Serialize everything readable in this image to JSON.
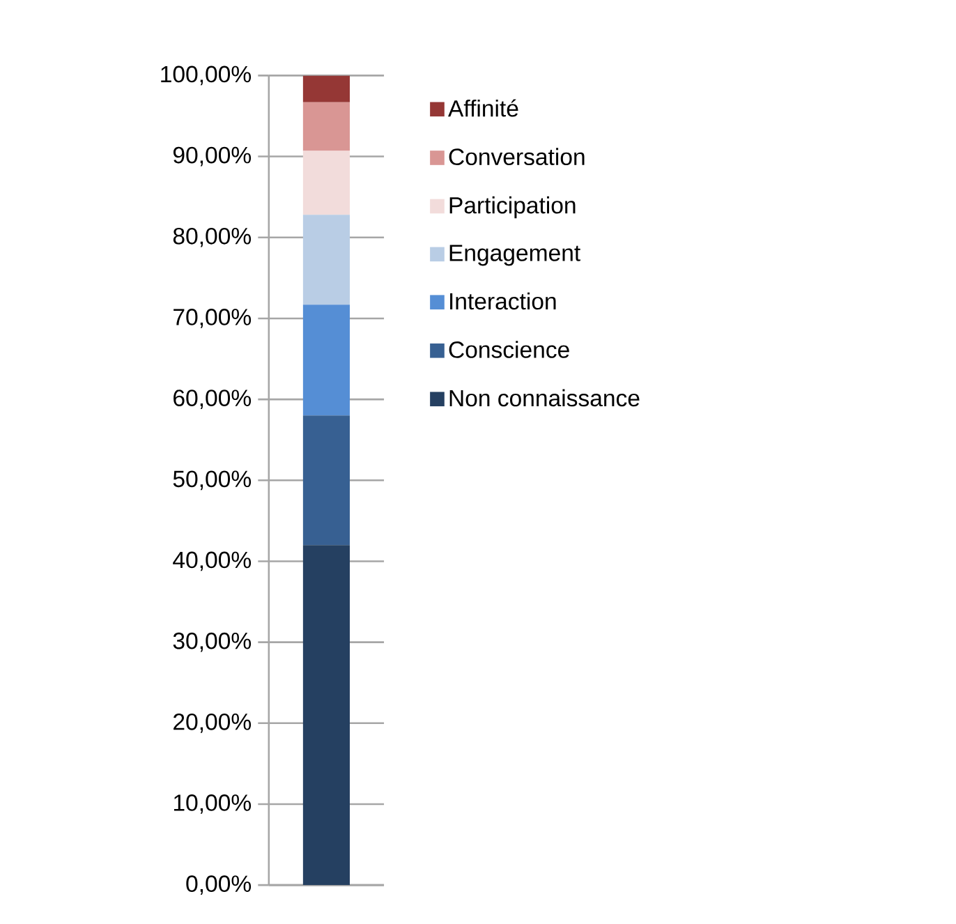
{
  "chart_data": {
    "type": "bar",
    "stacked": true,
    "categories": [
      null
    ],
    "series": [
      {
        "name": "Non connaissance",
        "color": "#254061",
        "values": [
          42
        ]
      },
      {
        "name": "Conscience",
        "color": "#376092",
        "values": [
          16
        ]
      },
      {
        "name": "Interaction",
        "color": "#558ed5",
        "values": [
          13.7
        ]
      },
      {
        "name": "Engagement",
        "color": "#b9cde5",
        "values": [
          11.1
        ]
      },
      {
        "name": "Participation",
        "color": "#f2dcdb",
        "values": [
          7.9
        ]
      },
      {
        "name": "Conversation",
        "color": "#d99694",
        "values": [
          6
        ]
      },
      {
        "name": "Affinité",
        "color": "#953735",
        "values": [
          3.3
        ]
      }
    ],
    "ylim": [
      0,
      100
    ],
    "yticks": [
      {
        "value": 0,
        "label": "0,00%"
      },
      {
        "value": 10,
        "label": "10,00%"
      },
      {
        "value": 20,
        "label": "20,00%"
      },
      {
        "value": 30,
        "label": "30,00%"
      },
      {
        "value": 40,
        "label": "40,00%"
      },
      {
        "value": 50,
        "label": "50,00%"
      },
      {
        "value": 60,
        "label": "60,00%"
      },
      {
        "value": 70,
        "label": "70,00%"
      },
      {
        "value": 80,
        "label": "80,00%"
      },
      {
        "value": 90,
        "label": "90,00%"
      },
      {
        "value": 100,
        "label": "100,00%"
      }
    ],
    "grid": "y",
    "legend": "right"
  }
}
